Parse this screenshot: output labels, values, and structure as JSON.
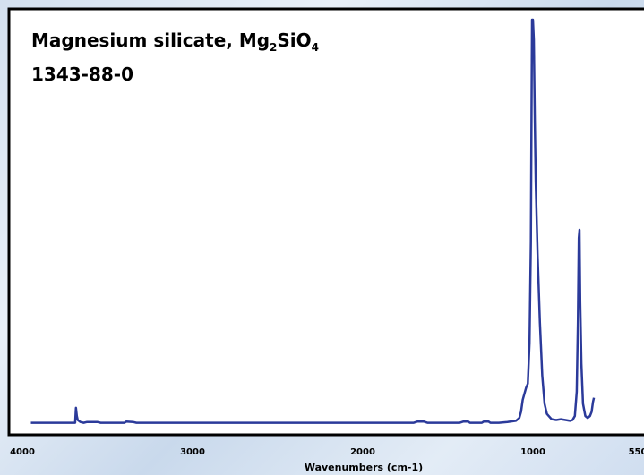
{
  "title": {
    "name_prefix": "Magnesium silicate, Mg",
    "sub1": "2",
    "mid": "SiO",
    "sub2": "4",
    "cas": "1343-88-0"
  },
  "chart_data": {
    "type": "line",
    "title": "Magnesium silicate, Mg2SiO4",
    "subtitle": "1343-88-0",
    "xlabel": "Wavenumbers (cm-1)",
    "ylabel": "",
    "xlim": [
      4000,
      550
    ],
    "ylim": [
      0,
      1
    ],
    "x_inverted": true,
    "xticks": [
      4000,
      3000,
      2000,
      1000,
      550
    ],
    "xtick_labels": [
      "4000",
      "3000",
      "2000",
      "1000",
      "550"
    ],
    "grid": false,
    "colors": {
      "line": "#2b3a9a",
      "frame": "#000000",
      "plot_bg": "#ffffff"
    },
    "series": [
      {
        "values": [
          [
            3950,
            0.003
          ],
          [
            3690,
            0.003
          ],
          [
            3685,
            0.04
          ],
          [
            3680,
            0.02
          ],
          [
            3675,
            0.01
          ],
          [
            3660,
            0.005
          ],
          [
            3640,
            0.003
          ],
          [
            3620,
            0.005
          ],
          [
            3560,
            0.005
          ],
          [
            3540,
            0.003
          ],
          [
            3400,
            0.003
          ],
          [
            3390,
            0.006
          ],
          [
            3350,
            0.005
          ],
          [
            3330,
            0.003
          ],
          [
            1700,
            0.003
          ],
          [
            1680,
            0.006
          ],
          [
            1640,
            0.006
          ],
          [
            1620,
            0.003
          ],
          [
            1430,
            0.003
          ],
          [
            1410,
            0.006
          ],
          [
            1380,
            0.006
          ],
          [
            1370,
            0.003
          ],
          [
            1300,
            0.003
          ],
          [
            1290,
            0.006
          ],
          [
            1260,
            0.006
          ],
          [
            1250,
            0.003
          ],
          [
            1200,
            0.003
          ],
          [
            1150,
            0.005
          ],
          [
            1100,
            0.008
          ],
          [
            1080,
            0.015
          ],
          [
            1070,
            0.03
          ],
          [
            1060,
            0.06
          ],
          [
            1040,
            0.09
          ],
          [
            1030,
            0.1
          ],
          [
            1020,
            0.2
          ],
          [
            1012,
            0.45
          ],
          [
            1008,
            0.8
          ],
          [
            1005,
            1.0
          ],
          [
            1000,
            1.0
          ],
          [
            996,
            0.95
          ],
          [
            992,
            0.75
          ],
          [
            988,
            0.6
          ],
          [
            980,
            0.42
          ],
          [
            970,
            0.25
          ],
          [
            960,
            0.12
          ],
          [
            950,
            0.05
          ],
          [
            940,
            0.025
          ],
          [
            920,
            0.012
          ],
          [
            900,
            0.01
          ],
          [
            880,
            0.012
          ],
          [
            860,
            0.01
          ],
          [
            840,
            0.008
          ],
          [
            830,
            0.01
          ],
          [
            820,
            0.02
          ],
          [
            812,
            0.08
          ],
          [
            807,
            0.25
          ],
          [
            803,
            0.46
          ],
          [
            800,
            0.48
          ],
          [
            797,
            0.3
          ],
          [
            792,
            0.15
          ],
          [
            785,
            0.05
          ],
          [
            775,
            0.02
          ],
          [
            765,
            0.015
          ],
          [
            755,
            0.02
          ],
          [
            748,
            0.03
          ],
          [
            742,
            0.055
          ],
          [
            738,
            0.065
          ]
        ]
      }
    ]
  }
}
